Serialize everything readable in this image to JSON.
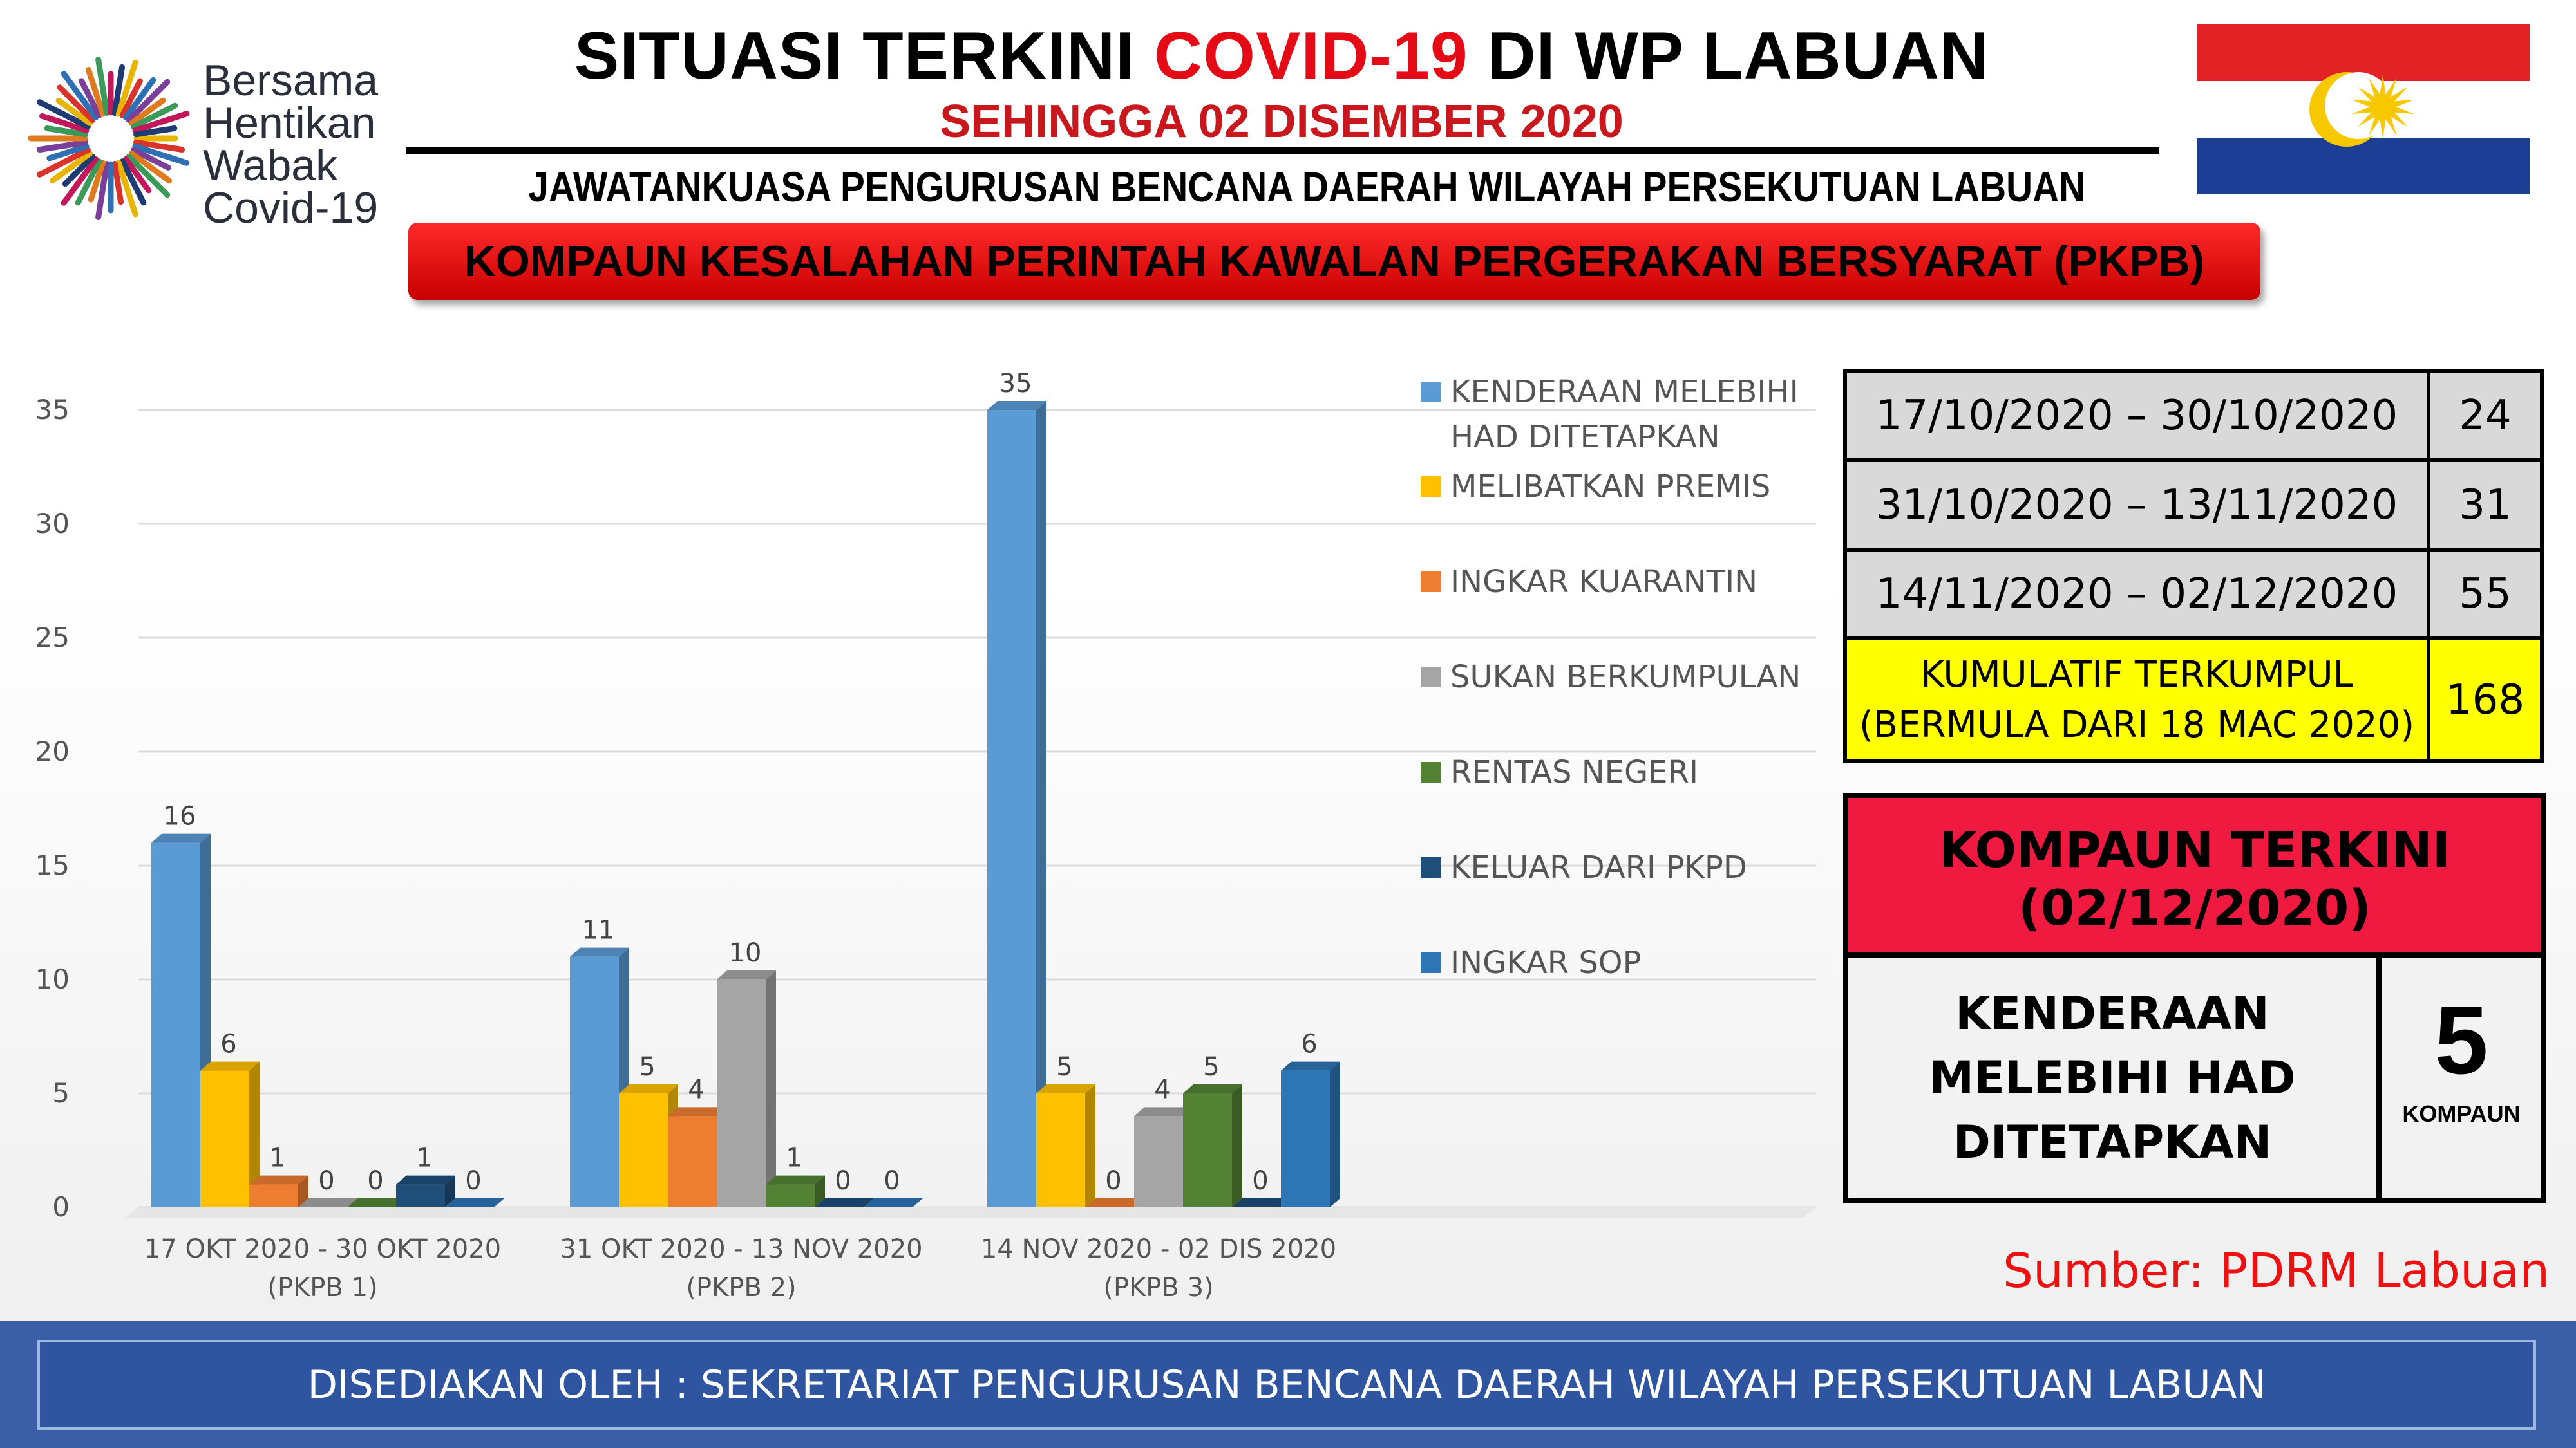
{
  "header": {
    "logo_lines": [
      "Bersama",
      "Hentikan",
      "Wabak",
      "Covid-19"
    ],
    "title_prefix": "SITUASI TERKINI ",
    "title_highlight": "COVID-19",
    "title_suffix": " DI WP LABUAN",
    "subtitle": "SEHINGGA 02 DISEMBER 2020",
    "committee": "JAWATANKUASA PENGURUSAN BENCANA DAERAH WILAYAH PERSEKUTUAN  LABUAN",
    "banner": "KOMPAUN KESALAHAN PERINTAH KAWALAN PERGERAKAN BERSYARAT (PKPB)"
  },
  "chart_data": {
    "type": "bar",
    "categories": [
      [
        "17 OKT 2020 - 30 OKT 2020",
        "(PKPB 1)"
      ],
      [
        "31 OKT 2020 - 13 NOV 2020",
        "(PKPB 2)"
      ],
      [
        "14 NOV 2020 - 02 DIS 2020",
        "(PKPB 3)"
      ]
    ],
    "series": [
      {
        "name": "KENDERAAN MELEBIHI HAD DITETAPKAN",
        "legend_lines": [
          "KENDERAAN MELEBIHI",
          "HAD DITETAPKAN"
        ],
        "color": "#5b9bd5",
        "values": [
          16,
          11,
          35
        ]
      },
      {
        "name": "MELIBATKAN PREMIS",
        "legend_lines": [
          "MELIBATKAN PREMIS"
        ],
        "color": "#ffc000",
        "values": [
          6,
          5,
          5
        ]
      },
      {
        "name": "INGKAR KUARANTIN",
        "legend_lines": [
          "INGKAR KUARANTIN"
        ],
        "color": "#ed7d31",
        "values": [
          1,
          4,
          0
        ]
      },
      {
        "name": "SUKAN BERKUMPULAN",
        "legend_lines": [
          "SUKAN BERKUMPULAN"
        ],
        "color": "#a5a5a5",
        "values": [
          0,
          10,
          4
        ]
      },
      {
        "name": "RENTAS NEGERI",
        "legend_lines": [
          "RENTAS NEGERI"
        ],
        "color": "#548235",
        "values": [
          0,
          1,
          5
        ]
      },
      {
        "name": "KELUAR DARI PKPD",
        "legend_lines": [
          "KELUAR DARI PKPD"
        ],
        "color": "#1f4e79",
        "values": [
          1,
          0,
          0
        ]
      },
      {
        "name": "INGKAR SOP",
        "legend_lines": [
          "INGKAR SOP"
        ],
        "color": "#2e75b6",
        "values": [
          0,
          0,
          6
        ]
      }
    ],
    "ylim": [
      0,
      35
    ],
    "yticks": [
      0,
      5,
      10,
      15,
      20,
      25,
      30,
      35
    ],
    "grid": true,
    "legend_position": "right",
    "style": "3d-column"
  },
  "summary": {
    "rows": [
      {
        "period": "17/10/2020 – 30/10/2020",
        "count": "24"
      },
      {
        "period": "31/10/2020 – 13/11/2020",
        "count": "31"
      },
      {
        "period": "14/11/2020 – 02/12/2020",
        "count": "55"
      }
    ],
    "cumulative_line1": "KUMULATIF TERKUMPUL",
    "cumulative_line2": "(BERMULA DARI 18 MAC 2020)",
    "cumulative_count": "168"
  },
  "latest": {
    "title": "KOMPAUN TERKINI",
    "date": "(02/12/2020)",
    "category_lines": [
      "KENDERAAN",
      "MELEBIHI HAD",
      "DITETAPKAN"
    ],
    "count": "5",
    "unit": "KOMPAUN"
  },
  "source": "Sumber: PDRM Labuan",
  "footer": "DISEDIAKAN OLEH : SEKRETARIAT PENGURUSAN BENCANA DAERAH WILAYAH PERSEKUTUAN LABUAN",
  "colors": {
    "red_accent": "#e40b17",
    "banner_red": "#ff2a2a",
    "footer_blue": "#3a5fa6",
    "highlight_yellow": "#ffff00",
    "latest_red": "#f0193f"
  }
}
